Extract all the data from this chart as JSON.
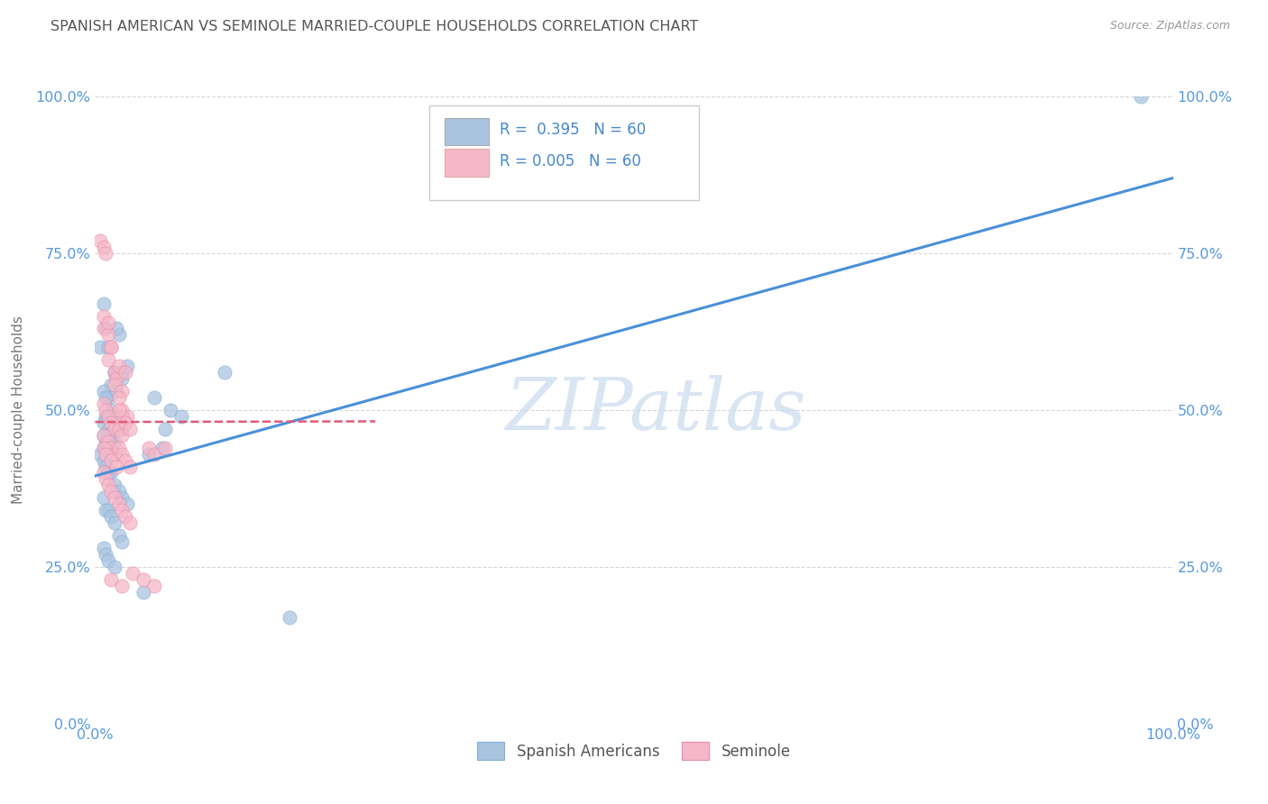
{
  "title": "SPANISH AMERICAN VS SEMINOLE MARRIED-COUPLE HOUSEHOLDS CORRELATION CHART",
  "source": "Source: ZipAtlas.com",
  "ylabel": "Married-couple Households",
  "watermark": "ZIPatlas",
  "blue_dot_color": "#aac4e0",
  "blue_dot_edge": "#7aadd4",
  "pink_dot_color": "#f5b8c8",
  "pink_dot_edge": "#e888a8",
  "line_blue": "#4a90d9",
  "line_pink": "#e05878",
  "title_color": "#555555",
  "ylabel_color": "#777777",
  "tick_color": "#5599dd",
  "grid_color": "#cccccc",
  "bg_color": "#ffffff",
  "legend_text_color": "#4488cc",
  "watermark_color": "#c5d8ed",
  "bottom_label_color": "#555555",
  "ytick_positions": [
    0.0,
    0.25,
    0.5,
    0.75,
    1.0
  ],
  "ytick_labels": [
    "0.0%",
    "25.0%",
    "50.0%",
    "75.0%",
    "100.0%"
  ],
  "xtick_positions": [
    0.0,
    1.0
  ],
  "xtick_labels": [
    "0.0%",
    "100.0%"
  ],
  "blue_line_x0": 0.0,
  "blue_line_y0": 0.395,
  "blue_line_x1": 1.0,
  "blue_line_y1": 0.87,
  "pink_line_x0": 0.0,
  "pink_line_y0": 0.481,
  "pink_line_x1": 0.26,
  "pink_line_y1": 0.482,
  "sa_x": [
    0.008,
    0.005,
    0.012,
    0.018,
    0.022,
    0.01,
    0.015,
    0.02,
    0.025,
    0.03,
    0.008,
    0.012,
    0.018,
    0.025,
    0.01,
    0.015,
    0.02,
    0.025,
    0.01,
    0.008,
    0.012,
    0.015,
    0.018,
    0.022,
    0.008,
    0.01,
    0.015,
    0.008,
    0.012,
    0.02,
    0.005,
    0.008,
    0.01,
    0.012,
    0.015,
    0.018,
    0.022,
    0.025,
    0.03,
    0.012,
    0.008,
    0.01,
    0.015,
    0.018,
    0.022,
    0.025,
    0.008,
    0.01,
    0.012,
    0.018,
    0.065,
    0.07,
    0.08,
    0.12,
    0.055,
    0.062,
    0.05,
    0.045,
    0.18,
    0.97
  ],
  "sa_y": [
    0.67,
    0.6,
    0.6,
    0.56,
    0.62,
    0.63,
    0.54,
    0.63,
    0.56,
    0.57,
    0.53,
    0.52,
    0.56,
    0.55,
    0.52,
    0.5,
    0.49,
    0.47,
    0.49,
    0.48,
    0.47,
    0.46,
    0.45,
    0.48,
    0.46,
    0.45,
    0.43,
    0.44,
    0.46,
    0.53,
    0.43,
    0.42,
    0.41,
    0.4,
    0.4,
    0.38,
    0.37,
    0.36,
    0.35,
    0.34,
    0.36,
    0.34,
    0.33,
    0.32,
    0.3,
    0.29,
    0.28,
    0.27,
    0.26,
    0.25,
    0.47,
    0.5,
    0.49,
    0.56,
    0.52,
    0.44,
    0.43,
    0.21,
    0.17,
    1.0
  ],
  "sem_x": [
    0.005,
    0.008,
    0.01,
    0.008,
    0.012,
    0.015,
    0.012,
    0.018,
    0.015,
    0.02,
    0.022,
    0.018,
    0.025,
    0.022,
    0.028,
    0.025,
    0.03,
    0.028,
    0.025,
    0.022,
    0.008,
    0.01,
    0.012,
    0.015,
    0.018,
    0.022,
    0.025,
    0.028,
    0.032,
    0.008,
    0.012,
    0.015,
    0.018,
    0.022,
    0.025,
    0.028,
    0.032,
    0.008,
    0.01,
    0.012,
    0.015,
    0.018,
    0.022,
    0.025,
    0.028,
    0.032,
    0.008,
    0.01,
    0.015,
    0.02,
    0.05,
    0.055,
    0.065,
    0.015,
    0.025,
    0.035,
    0.045,
    0.055,
    0.008,
    0.012
  ],
  "sem_y": [
    0.77,
    0.76,
    0.75,
    0.63,
    0.62,
    0.6,
    0.58,
    0.56,
    0.6,
    0.55,
    0.57,
    0.54,
    0.53,
    0.52,
    0.56,
    0.5,
    0.49,
    0.48,
    0.49,
    0.5,
    0.51,
    0.5,
    0.49,
    0.48,
    0.47,
    0.47,
    0.46,
    0.48,
    0.47,
    0.46,
    0.45,
    0.44,
    0.43,
    0.44,
    0.43,
    0.42,
    0.41,
    0.4,
    0.39,
    0.38,
    0.37,
    0.36,
    0.35,
    0.34,
    0.33,
    0.32,
    0.44,
    0.43,
    0.42,
    0.41,
    0.44,
    0.43,
    0.44,
    0.23,
    0.22,
    0.24,
    0.23,
    0.22,
    0.65,
    0.64
  ]
}
